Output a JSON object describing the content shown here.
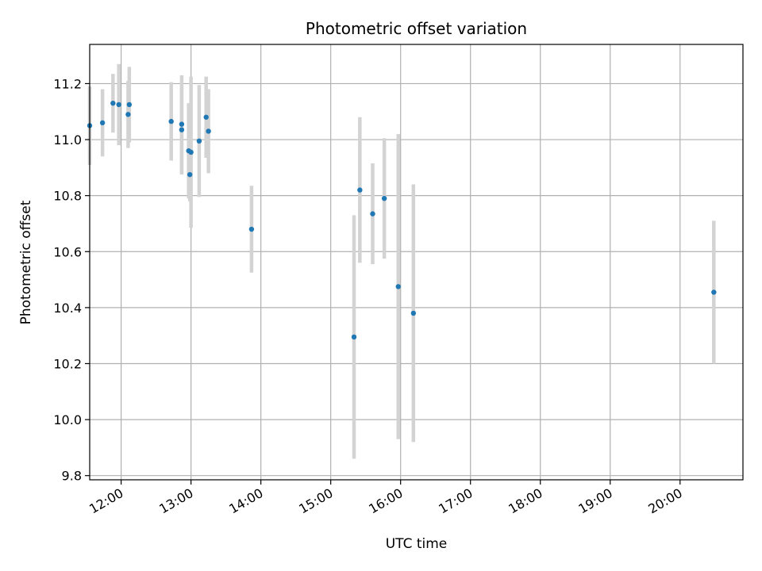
{
  "chart_data": {
    "type": "scatter",
    "title": "Photometric offset variation",
    "xlabel": "UTC time",
    "ylabel": "Photometric offset",
    "x_ticks": [
      "12:00",
      "13:00",
      "14:00",
      "15:00",
      "16:00",
      "17:00",
      "18:00",
      "19:00",
      "20:00"
    ],
    "y_ticks": [
      "9.8",
      "10.0",
      "10.2",
      "10.4",
      "10.6",
      "10.8",
      "11.0",
      "11.2"
    ],
    "xlim": [
      "11:33",
      "20:54"
    ],
    "ylim": [
      9.785,
      11.34
    ],
    "grid": true,
    "point_color": "#1f77b4",
    "errorbar_color": "#d3d3d3",
    "series": [
      {
        "points": [
          {
            "x": "11:33",
            "y": 11.05,
            "yerr": 0.14
          },
          {
            "x": "11:44",
            "y": 11.06,
            "yerr": 0.12
          },
          {
            "x": "11:53",
            "y": 11.13,
            "yerr": 0.105
          },
          {
            "x": "11:58",
            "y": 11.125,
            "yerr": 0.145
          },
          {
            "x": "12:06",
            "y": 11.09,
            "yerr": 0.12
          },
          {
            "x": "12:07",
            "y": 11.125,
            "yerr": 0.135
          },
          {
            "x": "12:43",
            "y": 11.065,
            "yerr": 0.14
          },
          {
            "x": "12:52",
            "y": 11.055,
            "yerr": 0.175
          },
          {
            "x": "12:52",
            "y": 11.035,
            "yerr": 0.16
          },
          {
            "x": "12:58",
            "y": 10.96,
            "yerr": 0.17
          },
          {
            "x": "12:59",
            "y": 10.875,
            "yerr": 0.095
          },
          {
            "x": "13:00",
            "y": 10.955,
            "yerr": 0.27
          },
          {
            "x": "13:07",
            "y": 10.995,
            "yerr": 0.2
          },
          {
            "x": "13:13",
            "y": 11.08,
            "yerr": 0.145
          },
          {
            "x": "13:15",
            "y": 11.03,
            "yerr": 0.15
          },
          {
            "x": "13:52",
            "y": 10.68,
            "yerr": 0.155
          },
          {
            "x": "15:20",
            "y": 10.295,
            "yerr": 0.435
          },
          {
            "x": "15:25",
            "y": 10.82,
            "yerr": 0.26
          },
          {
            "x": "15:36",
            "y": 10.735,
            "yerr": 0.18
          },
          {
            "x": "15:46",
            "y": 10.79,
            "yerr": 0.215
          },
          {
            "x": "15:58",
            "y": 10.475,
            "yerr": 0.545
          },
          {
            "x": "16:11",
            "y": 10.38,
            "yerr": 0.46
          },
          {
            "x": "20:29",
            "y": 10.455,
            "yerr": 0.255
          }
        ]
      }
    ]
  }
}
